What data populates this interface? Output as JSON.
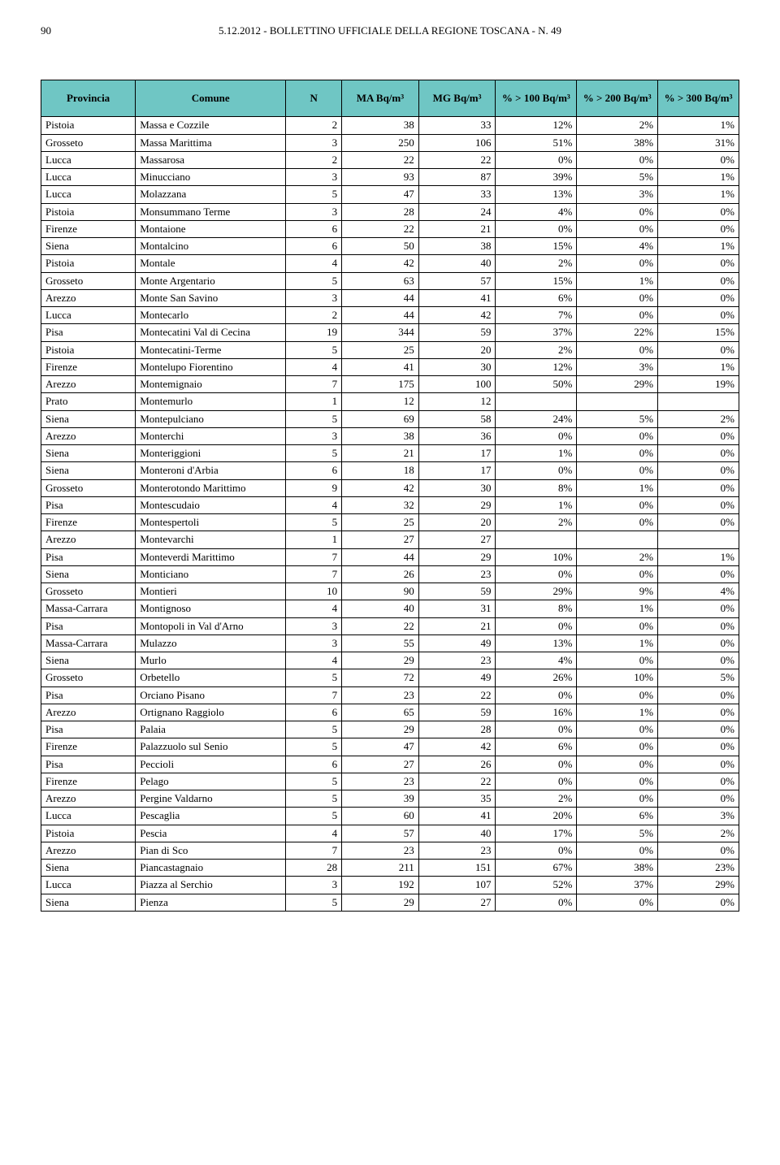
{
  "header": {
    "page_number": "90",
    "title": "5.12.2012 - BOLLETTINO UFFICIALE DELLA REGIONE TOSCANA - N. 49"
  },
  "table": {
    "columns": [
      "Provincia",
      "Comune",
      "N",
      "MA Bq/m³",
      "MG Bq/m³",
      "% > 100 Bq/m³",
      "% > 200 Bq/m³",
      "% > 300 Bq/m³"
    ],
    "rows": [
      [
        "Pistoia",
        "Massa e Cozzile",
        "2",
        "38",
        "33",
        "12%",
        "2%",
        "1%"
      ],
      [
        "Grosseto",
        "Massa Marittima",
        "3",
        "250",
        "106",
        "51%",
        "38%",
        "31%"
      ],
      [
        "Lucca",
        "Massarosa",
        "2",
        "22",
        "22",
        "0%",
        "0%",
        "0%"
      ],
      [
        "Lucca",
        "Minucciano",
        "3",
        "93",
        "87",
        "39%",
        "5%",
        "1%"
      ],
      [
        "Lucca",
        "Molazzana",
        "5",
        "47",
        "33",
        "13%",
        "3%",
        "1%"
      ],
      [
        "Pistoia",
        "Monsummano Terme",
        "3",
        "28",
        "24",
        "4%",
        "0%",
        "0%"
      ],
      [
        "Firenze",
        "Montaione",
        "6",
        "22",
        "21",
        "0%",
        "0%",
        "0%"
      ],
      [
        "Siena",
        "Montalcino",
        "6",
        "50",
        "38",
        "15%",
        "4%",
        "1%"
      ],
      [
        "Pistoia",
        "Montale",
        "4",
        "42",
        "40",
        "2%",
        "0%",
        "0%"
      ],
      [
        "Grosseto",
        "Monte Argentario",
        "5",
        "63",
        "57",
        "15%",
        "1%",
        "0%"
      ],
      [
        "Arezzo",
        "Monte San Savino",
        "3",
        "44",
        "41",
        "6%",
        "0%",
        "0%"
      ],
      [
        "Lucca",
        "Montecarlo",
        "2",
        "44",
        "42",
        "7%",
        "0%",
        "0%"
      ],
      [
        "Pisa",
        "Montecatini Val di Cecina",
        "19",
        "344",
        "59",
        "37%",
        "22%",
        "15%"
      ],
      [
        "Pistoia",
        "Montecatini-Terme",
        "5",
        "25",
        "20",
        "2%",
        "0%",
        "0%"
      ],
      [
        "Firenze",
        "Montelupo Fiorentino",
        "4",
        "41",
        "30",
        "12%",
        "3%",
        "1%"
      ],
      [
        "Arezzo",
        "Montemignaio",
        "7",
        "175",
        "100",
        "50%",
        "29%",
        "19%"
      ],
      [
        "Prato",
        "Montemurlo",
        "1",
        "12",
        "12",
        "",
        "",
        ""
      ],
      [
        "Siena",
        "Montepulciano",
        "5",
        "69",
        "58",
        "24%",
        "5%",
        "2%"
      ],
      [
        "Arezzo",
        "Monterchi",
        "3",
        "38",
        "36",
        "0%",
        "0%",
        "0%"
      ],
      [
        "Siena",
        "Monteriggioni",
        "5",
        "21",
        "17",
        "1%",
        "0%",
        "0%"
      ],
      [
        "Siena",
        "Monteroni d'Arbia",
        "6",
        "18",
        "17",
        "0%",
        "0%",
        "0%"
      ],
      [
        "Grosseto",
        "Monterotondo Marittimo",
        "9",
        "42",
        "30",
        "8%",
        "1%",
        "0%"
      ],
      [
        "Pisa",
        "Montescudaio",
        "4",
        "32",
        "29",
        "1%",
        "0%",
        "0%"
      ],
      [
        "Firenze",
        "Montespertoli",
        "5",
        "25",
        "20",
        "2%",
        "0%",
        "0%"
      ],
      [
        "Arezzo",
        "Montevarchi",
        "1",
        "27",
        "27",
        "",
        "",
        ""
      ],
      [
        "Pisa",
        "Monteverdi Marittimo",
        "7",
        "44",
        "29",
        "10%",
        "2%",
        "1%"
      ],
      [
        "Siena",
        "Monticiano",
        "7",
        "26",
        "23",
        "0%",
        "0%",
        "0%"
      ],
      [
        "Grosseto",
        "Montieri",
        "10",
        "90",
        "59",
        "29%",
        "9%",
        "4%"
      ],
      [
        "Massa-Carrara",
        "Montignoso",
        "4",
        "40",
        "31",
        "8%",
        "1%",
        "0%"
      ],
      [
        "Pisa",
        "Montopoli in Val d'Arno",
        "3",
        "22",
        "21",
        "0%",
        "0%",
        "0%"
      ],
      [
        "Massa-Carrara",
        "Mulazzo",
        "3",
        "55",
        "49",
        "13%",
        "1%",
        "0%"
      ],
      [
        "Siena",
        "Murlo",
        "4",
        "29",
        "23",
        "4%",
        "0%",
        "0%"
      ],
      [
        "Grosseto",
        "Orbetello",
        "5",
        "72",
        "49",
        "26%",
        "10%",
        "5%"
      ],
      [
        "Pisa",
        "Orciano Pisano",
        "7",
        "23",
        "22",
        "0%",
        "0%",
        "0%"
      ],
      [
        "Arezzo",
        "Ortignano Raggiolo",
        "6",
        "65",
        "59",
        "16%",
        "1%",
        "0%"
      ],
      [
        "Pisa",
        "Palaia",
        "5",
        "29",
        "28",
        "0%",
        "0%",
        "0%"
      ],
      [
        "Firenze",
        "Palazzuolo sul Senio",
        "5",
        "47",
        "42",
        "6%",
        "0%",
        "0%"
      ],
      [
        "Pisa",
        "Peccioli",
        "6",
        "27",
        "26",
        "0%",
        "0%",
        "0%"
      ],
      [
        "Firenze",
        "Pelago",
        "5",
        "23",
        "22",
        "0%",
        "0%",
        "0%"
      ],
      [
        "Arezzo",
        "Pergine Valdarno",
        "5",
        "39",
        "35",
        "2%",
        "0%",
        "0%"
      ],
      [
        "Lucca",
        "Pescaglia",
        "5",
        "60",
        "41",
        "20%",
        "6%",
        "3%"
      ],
      [
        "Pistoia",
        "Pescia",
        "4",
        "57",
        "40",
        "17%",
        "5%",
        "2%"
      ],
      [
        "Arezzo",
        "Pian di Sco",
        "7",
        "23",
        "23",
        "0%",
        "0%",
        "0%"
      ],
      [
        "Siena",
        "Piancastagnaio",
        "28",
        "211",
        "151",
        "67%",
        "38%",
        "23%"
      ],
      [
        "Lucca",
        "Piazza al Serchio",
        "3",
        "192",
        "107",
        "52%",
        "37%",
        "29%"
      ],
      [
        "Siena",
        "Pienza",
        "5",
        "29",
        "27",
        "0%",
        "0%",
        "0%"
      ]
    ],
    "header_bg": "#6fc6c4",
    "border_color": "#000000",
    "font_family": "Times New Roman"
  }
}
